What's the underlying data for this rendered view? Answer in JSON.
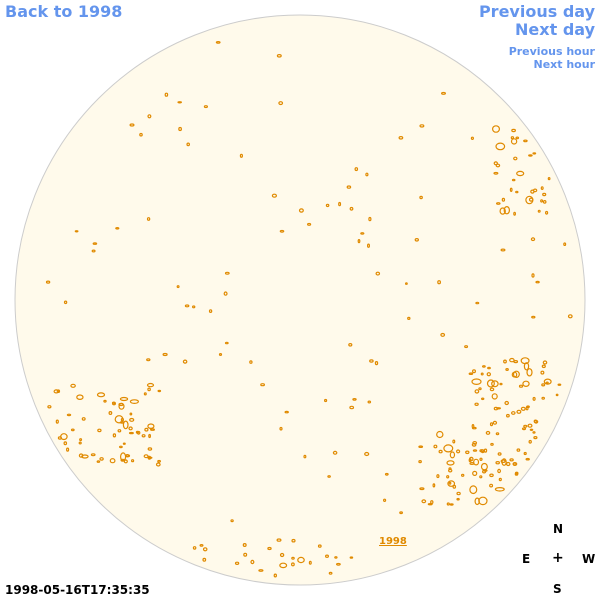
{
  "nav": {
    "back": "Back to 1998",
    "previous_day": "Previous day",
    "next_day": "Next day",
    "previous_hour": "Previous hour",
    "next_hour": "Next hour"
  },
  "map": {
    "year_link": "1998",
    "disk_fill": "#fffaeb",
    "disk_stroke": "#cccccc",
    "contour_color": "#e08a00"
  },
  "compass": {
    "n": "N",
    "e": "E",
    "center": "+",
    "w": "W",
    "s": "S"
  },
  "timestamp": "1998-05-16T17:35:35"
}
